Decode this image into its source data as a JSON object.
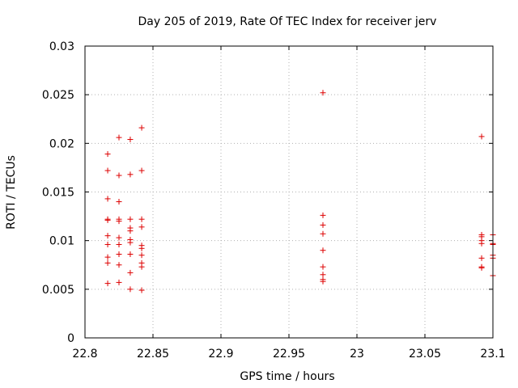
{
  "chart_data": {
    "type": "scatter",
    "title": "Day 205 of 2019, Rate Of TEC Index for receiver jerv",
    "xlabel": "GPS time / hours",
    "ylabel": "ROTI / TECUs",
    "xlim": [
      22.8,
      23.1
    ],
    "ylim": [
      0,
      0.03
    ],
    "xticks": [
      "22.8",
      "22.85",
      "22.9",
      "22.95",
      "23",
      "23.05",
      "23.1"
    ],
    "yticks": [
      "0",
      "0.005",
      "0.01",
      "0.015",
      "0.02",
      "0.025",
      "0.03"
    ],
    "grid": true,
    "marker_color": "#dd0000",
    "series": [
      {
        "points": [
          [
            22.8167,
            0.0189
          ],
          [
            22.8167,
            0.0172
          ],
          [
            22.8167,
            0.0143
          ],
          [
            22.8167,
            0.0122
          ],
          [
            22.8167,
            0.0121
          ],
          [
            22.8167,
            0.0105
          ],
          [
            22.8167,
            0.0096
          ],
          [
            22.8167,
            0.0083
          ],
          [
            22.8167,
            0.0077
          ],
          [
            22.8167,
            0.0056
          ],
          [
            22.825,
            0.0206
          ],
          [
            22.825,
            0.0167
          ],
          [
            22.825,
            0.014
          ],
          [
            22.825,
            0.0122
          ],
          [
            22.825,
            0.012
          ],
          [
            22.825,
            0.0103
          ],
          [
            22.825,
            0.0096
          ],
          [
            22.825,
            0.0086
          ],
          [
            22.825,
            0.0075
          ],
          [
            22.825,
            0.0057
          ],
          [
            22.8333,
            0.0204
          ],
          [
            22.8333,
            0.0168
          ],
          [
            22.8333,
            0.0122
          ],
          [
            22.8333,
            0.0113
          ],
          [
            22.8333,
            0.011
          ],
          [
            22.8333,
            0.0101
          ],
          [
            22.8333,
            0.0098
          ],
          [
            22.8333,
            0.0086
          ],
          [
            22.8333,
            0.0067
          ],
          [
            22.8333,
            0.005
          ],
          [
            22.8417,
            0.0216
          ],
          [
            22.8417,
            0.0172
          ],
          [
            22.8417,
            0.0122
          ],
          [
            22.8417,
            0.0114
          ],
          [
            22.8417,
            0.0095
          ],
          [
            22.8417,
            0.0092
          ],
          [
            22.8417,
            0.0085
          ],
          [
            22.8417,
            0.0077
          ],
          [
            22.8417,
            0.0073
          ],
          [
            22.8417,
            0.0049
          ],
          [
            22.975,
            0.0252
          ],
          [
            22.975,
            0.0126
          ],
          [
            22.975,
            0.0116
          ],
          [
            22.975,
            0.0107
          ],
          [
            22.975,
            0.009
          ],
          [
            22.975,
            0.0073
          ],
          [
            22.975,
            0.0065
          ],
          [
            22.975,
            0.006
          ],
          [
            22.975,
            0.0058
          ],
          [
            23.0917,
            0.0207
          ],
          [
            23.0917,
            0.0106
          ],
          [
            23.0917,
            0.0104
          ],
          [
            23.0917,
            0.01
          ],
          [
            23.0917,
            0.0097
          ],
          [
            23.0917,
            0.0082
          ],
          [
            23.0917,
            0.0073
          ],
          [
            23.0917,
            0.0072
          ],
          [
            23.1,
            0.0106
          ],
          [
            23.1,
            0.0097
          ],
          [
            23.1,
            0.0096
          ],
          [
            23.1,
            0.0085
          ],
          [
            23.1,
            0.0082
          ],
          [
            23.1,
            0.0064
          ]
        ]
      }
    ]
  }
}
